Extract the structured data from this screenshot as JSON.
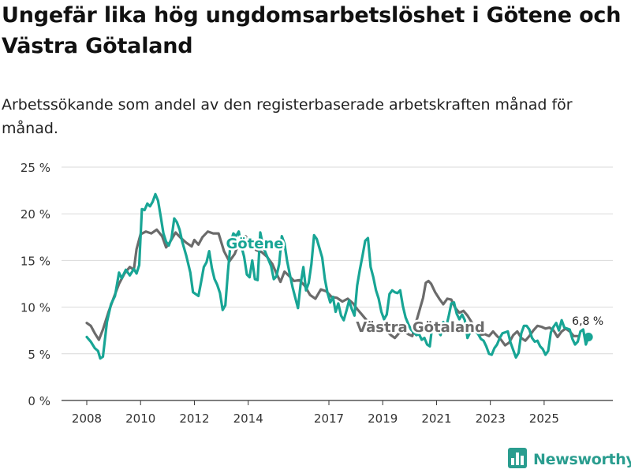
{
  "title": "Ungefär lika hög ungdomsarbetslöshet i Götene och Västra Götaland",
  "subtitle": "Arbetssökande som andel av den registerbaserade arbetskraften månad för månad.",
  "brand": {
    "name": "Newsworthy",
    "logo_icon": "bar-chart-icon"
  },
  "colors": {
    "gotene": "#18a595",
    "vg": "#6b6b6b",
    "grid": "#d9d9d9",
    "axis": "#333333",
    "brand": "#2a9d8f"
  },
  "chart_data": {
    "type": "line",
    "title": "Ungefär lika hög ungdomsarbetslöshet i Götene och Västra Götaland",
    "xlabel": "",
    "ylabel": "",
    "ylim": [
      0,
      25
    ],
    "xlim": [
      2007.7,
      2026.85
    ],
    "y_ticks": [
      0,
      5,
      10,
      15,
      20,
      25
    ],
    "y_tick_labels": [
      "0 %",
      "5 %",
      "10 %",
      "15 %",
      "20 %",
      "25 %"
    ],
    "x_ticks": [
      2008,
      2010,
      2012,
      2014,
      2017,
      2019,
      2021,
      2023,
      2025
    ],
    "x_tick_labels": [
      "2008",
      "2010",
      "2012",
      "2014",
      "2017",
      "2019",
      "2021",
      "2023",
      "2025"
    ],
    "end_label": "6,8 %",
    "series": [
      {
        "name": "Västra Götaland",
        "label": "Västra Götaland",
        "points": [
          [
            2008.0,
            8.3
          ],
          [
            2008.15,
            8.0
          ],
          [
            2008.3,
            7.2
          ],
          [
            2008.45,
            6.5
          ],
          [
            2008.6,
            7.6
          ],
          [
            2008.8,
            9.4
          ],
          [
            2009.0,
            11.0
          ],
          [
            2009.2,
            12.5
          ],
          [
            2009.4,
            13.6
          ],
          [
            2009.6,
            14.3
          ],
          [
            2009.75,
            14.0
          ],
          [
            2009.85,
            16.2
          ],
          [
            2010.0,
            17.8
          ],
          [
            2010.2,
            18.1
          ],
          [
            2010.4,
            17.9
          ],
          [
            2010.6,
            18.3
          ],
          [
            2010.8,
            17.6
          ],
          [
            2010.95,
            16.4
          ],
          [
            2011.1,
            17.0
          ],
          [
            2011.3,
            18.0
          ],
          [
            2011.5,
            17.4
          ],
          [
            2011.7,
            16.9
          ],
          [
            2011.9,
            16.5
          ],
          [
            2012.0,
            17.2
          ],
          [
            2012.15,
            16.7
          ],
          [
            2012.3,
            17.5
          ],
          [
            2012.5,
            18.1
          ],
          [
            2012.7,
            17.9
          ],
          [
            2012.9,
            17.9
          ],
          [
            2013.1,
            16.0
          ],
          [
            2013.3,
            14.9
          ],
          [
            2013.5,
            15.7
          ],
          [
            2013.7,
            17.2
          ],
          [
            2013.9,
            17.6
          ],
          [
            2014.1,
            16.8
          ],
          [
            2014.3,
            16.1
          ],
          [
            2014.5,
            15.9
          ],
          [
            2014.7,
            15.4
          ],
          [
            2014.9,
            14.6
          ],
          [
            2015.05,
            13.6
          ],
          [
            2015.2,
            12.7
          ],
          [
            2015.35,
            13.8
          ],
          [
            2015.5,
            13.4
          ],
          [
            2015.7,
            12.8
          ],
          [
            2015.9,
            12.9
          ],
          [
            2016.1,
            12.3
          ],
          [
            2016.3,
            11.3
          ],
          [
            2016.5,
            10.9
          ],
          [
            2016.7,
            11.9
          ],
          [
            2016.9,
            11.7
          ],
          [
            2017.1,
            11.1
          ],
          [
            2017.3,
            11.0
          ],
          [
            2017.5,
            10.6
          ],
          [
            2017.7,
            10.9
          ],
          [
            2017.9,
            10.4
          ],
          [
            2018.05,
            9.8
          ],
          [
            2018.2,
            9.3
          ],
          [
            2018.4,
            8.6
          ],
          [
            2018.55,
            7.9
          ],
          [
            2018.7,
            7.7
          ],
          [
            2018.9,
            7.9
          ],
          [
            2019.1,
            7.6
          ],
          [
            2019.3,
            7.0
          ],
          [
            2019.45,
            6.7
          ],
          [
            2019.6,
            7.2
          ],
          [
            2019.8,
            7.4
          ],
          [
            2019.95,
            7.1
          ],
          [
            2020.1,
            6.9
          ],
          [
            2020.2,
            8.0
          ],
          [
            2020.35,
            9.5
          ],
          [
            2020.5,
            11.0
          ],
          [
            2020.6,
            12.6
          ],
          [
            2020.7,
            12.8
          ],
          [
            2020.8,
            12.5
          ],
          [
            2020.95,
            11.6
          ],
          [
            2021.1,
            10.9
          ],
          [
            2021.25,
            10.3
          ],
          [
            2021.4,
            10.9
          ],
          [
            2021.55,
            10.8
          ],
          [
            2021.7,
            9.9
          ],
          [
            2021.85,
            9.4
          ],
          [
            2022.0,
            9.6
          ],
          [
            2022.15,
            9.1
          ],
          [
            2022.3,
            8.4
          ],
          [
            2022.45,
            7.6
          ],
          [
            2022.6,
            7.0
          ],
          [
            2022.8,
            7.1
          ],
          [
            2022.95,
            6.9
          ],
          [
            2023.1,
            7.4
          ],
          [
            2023.25,
            6.9
          ],
          [
            2023.4,
            6.5
          ],
          [
            2023.55,
            5.9
          ],
          [
            2023.7,
            6.2
          ],
          [
            2023.85,
            7.0
          ],
          [
            2024.0,
            7.4
          ],
          [
            2024.15,
            6.7
          ],
          [
            2024.3,
            6.4
          ],
          [
            2024.45,
            6.9
          ],
          [
            2024.6,
            7.5
          ],
          [
            2024.75,
            8.0
          ],
          [
            2024.9,
            7.9
          ],
          [
            2025.05,
            7.7
          ],
          [
            2025.2,
            7.8
          ],
          [
            2025.35,
            7.5
          ],
          [
            2025.5,
            6.8
          ],
          [
            2025.65,
            7.4
          ],
          [
            2025.8,
            7.7
          ],
          [
            2025.95,
            7.4
          ],
          [
            2026.1,
            6.9
          ],
          [
            2026.25,
            6.9
          ]
        ]
      },
      {
        "name": "Götene",
        "label": "Götene",
        "points": [
          [
            2008.0,
            6.8
          ],
          [
            2008.15,
            6.3
          ],
          [
            2008.3,
            5.6
          ],
          [
            2008.42,
            5.3
          ],
          [
            2008.5,
            4.5
          ],
          [
            2008.6,
            4.7
          ],
          [
            2008.75,
            8.4
          ],
          [
            2008.9,
            10.3
          ],
          [
            2009.05,
            11.2
          ],
          [
            2009.2,
            13.7
          ],
          [
            2009.3,
            13.1
          ],
          [
            2009.45,
            14.0
          ],
          [
            2009.6,
            13.4
          ],
          [
            2009.75,
            14.1
          ],
          [
            2009.85,
            13.6
          ],
          [
            2009.95,
            14.5
          ],
          [
            2010.05,
            20.5
          ],
          [
            2010.15,
            20.4
          ],
          [
            2010.25,
            21.1
          ],
          [
            2010.35,
            20.8
          ],
          [
            2010.45,
            21.3
          ],
          [
            2010.55,
            22.1
          ],
          [
            2010.65,
            21.4
          ],
          [
            2010.75,
            19.7
          ],
          [
            2010.85,
            17.9
          ],
          [
            2010.95,
            17.0
          ],
          [
            2011.05,
            16.6
          ],
          [
            2011.15,
            17.4
          ],
          [
            2011.25,
            19.5
          ],
          [
            2011.35,
            19.1
          ],
          [
            2011.45,
            18.3
          ],
          [
            2011.55,
            17.0
          ],
          [
            2011.7,
            15.5
          ],
          [
            2011.85,
            13.7
          ],
          [
            2011.95,
            11.6
          ],
          [
            2012.05,
            11.4
          ],
          [
            2012.15,
            11.2
          ],
          [
            2012.25,
            12.7
          ],
          [
            2012.35,
            14.3
          ],
          [
            2012.45,
            14.8
          ],
          [
            2012.55,
            16.0
          ],
          [
            2012.65,
            14.2
          ],
          [
            2012.75,
            13.0
          ],
          [
            2012.85,
            12.4
          ],
          [
            2012.95,
            11.5
          ],
          [
            2013.05,
            9.7
          ],
          [
            2013.15,
            10.2
          ],
          [
            2013.25,
            13.9
          ],
          [
            2013.35,
            17.0
          ],
          [
            2013.45,
            17.9
          ],
          [
            2013.55,
            17.6
          ],
          [
            2013.65,
            18.1
          ],
          [
            2013.75,
            16.5
          ],
          [
            2013.85,
            15.4
          ],
          [
            2013.95,
            13.5
          ],
          [
            2014.05,
            13.2
          ],
          [
            2014.15,
            15.0
          ],
          [
            2014.25,
            13.0
          ],
          [
            2014.35,
            12.9
          ],
          [
            2014.45,
            18.0
          ],
          [
            2014.55,
            16.6
          ],
          [
            2014.65,
            15.8
          ],
          [
            2014.75,
            15.1
          ],
          [
            2014.85,
            14.4
          ],
          [
            2014.95,
            13.0
          ],
          [
            2015.05,
            13.3
          ],
          [
            2015.15,
            14.6
          ],
          [
            2015.25,
            17.6
          ],
          [
            2015.35,
            16.8
          ],
          [
            2015.45,
            14.9
          ],
          [
            2015.55,
            13.5
          ],
          [
            2015.65,
            12.1
          ],
          [
            2015.75,
            11.0
          ],
          [
            2015.85,
            9.9
          ],
          [
            2015.95,
            12.5
          ],
          [
            2016.05,
            14.3
          ],
          [
            2016.15,
            11.8
          ],
          [
            2016.25,
            12.6
          ],
          [
            2016.35,
            14.6
          ],
          [
            2016.45,
            17.7
          ],
          [
            2016.55,
            17.3
          ],
          [
            2016.65,
            16.3
          ],
          [
            2016.75,
            15.3
          ],
          [
            2016.85,
            13.0
          ],
          [
            2016.95,
            11.5
          ],
          [
            2017.05,
            10.5
          ],
          [
            2017.15,
            11.1
          ],
          [
            2017.25,
            9.5
          ],
          [
            2017.35,
            10.4
          ],
          [
            2017.45,
            9.1
          ],
          [
            2017.55,
            8.6
          ],
          [
            2017.65,
            9.6
          ],
          [
            2017.75,
            10.7
          ],
          [
            2017.85,
            9.8
          ],
          [
            2017.95,
            9.1
          ],
          [
            2018.05,
            12.3
          ],
          [
            2018.15,
            14.0
          ],
          [
            2018.25,
            15.5
          ],
          [
            2018.35,
            17.1
          ],
          [
            2018.45,
            17.4
          ],
          [
            2018.55,
            14.3
          ],
          [
            2018.65,
            13.2
          ],
          [
            2018.75,
            11.8
          ],
          [
            2018.85,
            10.9
          ],
          [
            2018.95,
            9.5
          ],
          [
            2019.05,
            8.7
          ],
          [
            2019.15,
            9.2
          ],
          [
            2019.25,
            11.4
          ],
          [
            2019.35,
            11.8
          ],
          [
            2019.45,
            11.6
          ],
          [
            2019.55,
            11.5
          ],
          [
            2019.65,
            11.8
          ],
          [
            2019.75,
            10.1
          ],
          [
            2019.85,
            8.9
          ],
          [
            2019.95,
            8.2
          ],
          [
            2020.05,
            7.6
          ],
          [
            2020.15,
            7.3
          ],
          [
            2020.25,
            7.0
          ],
          [
            2020.35,
            7.1
          ],
          [
            2020.45,
            6.5
          ],
          [
            2020.55,
            6.7
          ],
          [
            2020.65,
            6.0
          ],
          [
            2020.75,
            5.8
          ],
          [
            2020.85,
            8.2
          ],
          [
            2020.95,
            7.9
          ],
          [
            2021.05,
            7.5
          ],
          [
            2021.15,
            7.0
          ],
          [
            2021.25,
            8.4
          ],
          [
            2021.35,
            7.8
          ],
          [
            2021.45,
            9.0
          ],
          [
            2021.55,
            10.4
          ],
          [
            2021.65,
            10.5
          ],
          [
            2021.75,
            9.3
          ],
          [
            2021.85,
            8.7
          ],
          [
            2021.95,
            9.2
          ],
          [
            2022.05,
            8.6
          ],
          [
            2022.15,
            6.7
          ],
          [
            2022.25,
            7.3
          ],
          [
            2022.35,
            8.2
          ],
          [
            2022.45,
            7.4
          ],
          [
            2022.55,
            7.1
          ],
          [
            2022.65,
            6.6
          ],
          [
            2022.75,
            6.4
          ],
          [
            2022.85,
            5.8
          ],
          [
            2022.95,
            5.0
          ],
          [
            2023.05,
            4.9
          ],
          [
            2023.15,
            5.6
          ],
          [
            2023.25,
            6.0
          ],
          [
            2023.35,
            6.7
          ],
          [
            2023.45,
            7.2
          ],
          [
            2023.55,
            7.3
          ],
          [
            2023.65,
            7.4
          ],
          [
            2023.75,
            6.2
          ],
          [
            2023.85,
            5.4
          ],
          [
            2023.95,
            4.6
          ],
          [
            2024.05,
            5.1
          ],
          [
            2024.15,
            7.2
          ],
          [
            2024.25,
            8.0
          ],
          [
            2024.35,
            8.0
          ],
          [
            2024.45,
            7.6
          ],
          [
            2024.55,
            6.7
          ],
          [
            2024.65,
            6.3
          ],
          [
            2024.75,
            6.4
          ],
          [
            2024.85,
            5.8
          ],
          [
            2024.95,
            5.5
          ],
          [
            2025.05,
            4.9
          ],
          [
            2025.15,
            5.3
          ],
          [
            2025.25,
            7.3
          ],
          [
            2025.35,
            7.9
          ],
          [
            2025.45,
            8.3
          ],
          [
            2025.55,
            7.5
          ],
          [
            2025.65,
            8.6
          ],
          [
            2025.75,
            7.8
          ],
          [
            2025.85,
            7.7
          ],
          [
            2025.95,
            7.6
          ],
          [
            2026.05,
            6.6
          ],
          [
            2026.15,
            6.0
          ],
          [
            2026.25,
            6.3
          ],
          [
            2026.35,
            7.4
          ],
          [
            2026.45,
            7.6
          ],
          [
            2026.55,
            6.0
          ],
          [
            2026.65,
            6.8
          ]
        ]
      }
    ]
  }
}
